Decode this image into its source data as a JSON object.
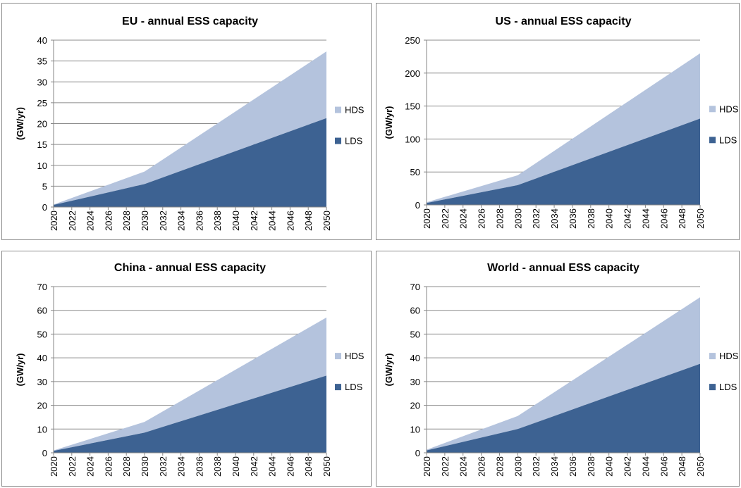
{
  "colors": {
    "HDS": "#b4c3dd",
    "LDS": "#3d6292",
    "grid": "#8c8c8c",
    "axis": "#868686"
  },
  "chart_data": [
    {
      "type": "area",
      "stacked": true,
      "title": "EU - annual ESS capacity",
      "ylabel": "(GW/yr)",
      "ylim": [
        0,
        40
      ],
      "yticks": [
        "0",
        "5",
        "10",
        "15",
        "20",
        "25",
        "30",
        "35",
        "40"
      ],
      "xticks": [
        "2020",
        "2022",
        "2024",
        "2026",
        "2028",
        "2030",
        "2032",
        "2034",
        "2036",
        "2038",
        "2040",
        "2042",
        "2044",
        "2046",
        "2048",
        "2050"
      ],
      "x": [
        2020,
        2030,
        2050
      ],
      "legend_position": "right",
      "series": [
        {
          "name": "LDS",
          "values": [
            0.5,
            5.5,
            21.3
          ]
        },
        {
          "name": "HDS",
          "values": [
            0.1,
            3.0,
            16.0
          ]
        }
      ]
    },
    {
      "type": "area",
      "stacked": true,
      "title": "US - annual ESS capacity",
      "ylabel": "(GW/yr)",
      "ylim": [
        0,
        250
      ],
      "yticks": [
        "0",
        "50",
        "100",
        "150",
        "200",
        "250"
      ],
      "xticks": [
        "2020",
        "2022",
        "2024",
        "2026",
        "2028",
        "2030",
        "2032",
        "2034",
        "2036",
        "2038",
        "2040",
        "2042",
        "2044",
        "2046",
        "2048",
        "2050"
      ],
      "x": [
        2020,
        2030,
        2050
      ],
      "legend_position": "right",
      "series": [
        {
          "name": "LDS",
          "values": [
            3,
            30,
            131
          ]
        },
        {
          "name": "HDS",
          "values": [
            1,
            15,
            99
          ]
        }
      ]
    },
    {
      "type": "area",
      "stacked": true,
      "title": "China - annual ESS capacity",
      "ylabel": "(GW/yr)",
      "ylim": [
        0,
        70
      ],
      "yticks": [
        "0",
        "10",
        "20",
        "30",
        "40",
        "50",
        "60",
        "70"
      ],
      "xticks": [
        "2020",
        "2022",
        "2024",
        "2026",
        "2028",
        "2030",
        "2032",
        "2034",
        "2036",
        "2038",
        "2040",
        "2042",
        "2044",
        "2046",
        "2048",
        "2050"
      ],
      "x": [
        2020,
        2030,
        2050
      ],
      "legend_position": "right",
      "series": [
        {
          "name": "LDS",
          "values": [
            0.8,
            8.5,
            32.5
          ]
        },
        {
          "name": "HDS",
          "values": [
            0.2,
            4.5,
            24.5
          ]
        }
      ]
    },
    {
      "type": "area",
      "stacked": true,
      "title": "World - annual ESS capacity",
      "ylabel": "(GW/yr)",
      "ylim": [
        0,
        70
      ],
      "yticks": [
        "0",
        "10",
        "20",
        "30",
        "40",
        "50",
        "60",
        "70"
      ],
      "xticks": [
        "2020",
        "2022",
        "2024",
        "2026",
        "2028",
        "2030",
        "2032",
        "2034",
        "2036",
        "2038",
        "2040",
        "2042",
        "2044",
        "2046",
        "2048",
        "2050"
      ],
      "x": [
        2020,
        2030,
        2050
      ],
      "legend_position": "right",
      "series": [
        {
          "name": "LDS",
          "values": [
            1,
            10,
            37.5
          ]
        },
        {
          "name": "HDS",
          "values": [
            0.3,
            5.5,
            28
          ]
        }
      ]
    }
  ]
}
